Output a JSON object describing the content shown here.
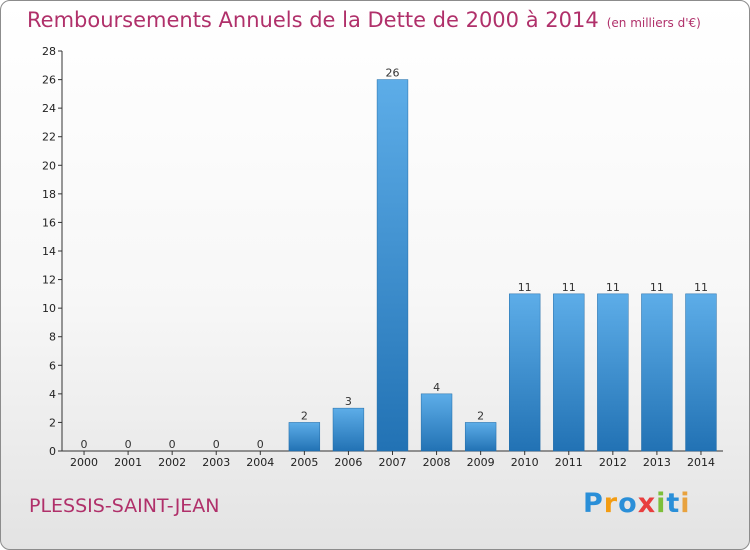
{
  "header": {
    "title": "Remboursements Annuels de la Dette de 2000 à 2014",
    "unit": "(en milliers d'€)"
  },
  "footer": {
    "commune": "PLESSIS-SAINT-JEAN",
    "logo": "Proxiti",
    "logo_letters": [
      "P",
      "r",
      "o",
      "x",
      "i",
      "t",
      "i"
    ],
    "logo_colors": [
      "#2a8fd8",
      "#f39c12",
      "#2a8fd8",
      "#e83e3e",
      "#7dbf3a",
      "#2a8fd8",
      "#e8a23e"
    ]
  },
  "chart_data": {
    "type": "bar",
    "title": "Remboursements Annuels de la Dette de 2000 à 2014",
    "subtitle": "(en milliers d'€)",
    "xlabel": "",
    "ylabel": "",
    "categories": [
      "2000",
      "2001",
      "2002",
      "2003",
      "2004",
      "2005",
      "2006",
      "2007",
      "2008",
      "2009",
      "2010",
      "2011",
      "2012",
      "2013",
      "2014"
    ],
    "values": [
      0,
      0,
      0,
      0,
      0,
      2,
      3,
      26,
      4,
      2,
      11,
      11,
      11,
      11,
      11
    ],
    "data_labels": [
      "0",
      "0",
      "0",
      "0",
      "0",
      "2",
      "3",
      "26",
      "4",
      "2",
      "11",
      "11",
      "11",
      "11",
      "11"
    ],
    "ylim": [
      0,
      28
    ],
    "yticks": [
      0,
      2,
      4,
      6,
      8,
      10,
      12,
      14,
      16,
      18,
      20,
      22,
      24,
      26,
      28
    ],
    "grid": false,
    "colors": {
      "bar_light": "#5dade8",
      "bar_dark": "#2272b4",
      "axis": "#333333"
    }
  }
}
